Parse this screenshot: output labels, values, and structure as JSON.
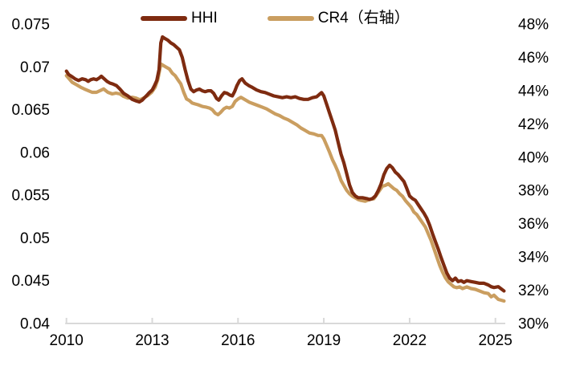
{
  "chart_data": {
    "type": "line",
    "title": "",
    "legend_position": "top",
    "grid": false,
    "axis_color": "#D9D9D9",
    "text_color": "#000000",
    "x_ticks": [
      2010,
      2013,
      2016,
      2019,
      2022,
      2025
    ],
    "left_axis": {
      "label": "HHI",
      "min": 0.04,
      "max": 0.075,
      "tick_labels": [
        "0.075",
        "0.07",
        "0.065",
        "0.06",
        "0.055",
        "0.05",
        "0.045",
        "0.04"
      ],
      "tick_values": [
        0.075,
        0.07,
        0.065,
        0.06,
        0.055,
        0.05,
        0.045,
        0.04
      ]
    },
    "right_axis": {
      "label": "CR4",
      "min": 30,
      "max": 48,
      "tick_labels": [
        "48%",
        "46%",
        "44%",
        "42%",
        "40%",
        "38%",
        "36%",
        "34%",
        "32%",
        "30%"
      ],
      "tick_values": [
        48,
        46,
        44,
        42,
        40,
        38,
        36,
        34,
        32,
        30
      ]
    },
    "series": [
      {
        "name": "HHI",
        "axis": "left",
        "color": "#7E2B10",
        "points": [
          [
            2010.0,
            0.0695
          ],
          [
            2010.08,
            0.0691
          ],
          [
            2010.17,
            0.0689
          ],
          [
            2010.3,
            0.0686
          ],
          [
            2010.42,
            0.0684
          ],
          [
            2010.55,
            0.0686
          ],
          [
            2010.67,
            0.0685
          ],
          [
            2010.76,
            0.0683
          ],
          [
            2010.85,
            0.0685
          ],
          [
            2010.95,
            0.0686
          ],
          [
            2011.05,
            0.0685
          ],
          [
            2011.15,
            0.0687
          ],
          [
            2011.22,
            0.0689
          ],
          [
            2011.32,
            0.0686
          ],
          [
            2011.42,
            0.0683
          ],
          [
            2011.52,
            0.0681
          ],
          [
            2011.62,
            0.068
          ],
          [
            2011.75,
            0.0678
          ],
          [
            2011.87,
            0.0674
          ],
          [
            2012.0,
            0.0669
          ],
          [
            2012.15,
            0.0666
          ],
          [
            2012.3,
            0.0662
          ],
          [
            2012.45,
            0.066
          ],
          [
            2012.55,
            0.0659
          ],
          [
            2012.65,
            0.0661
          ],
          [
            2012.73,
            0.0664
          ],
          [
            2012.82,
            0.0667
          ],
          [
            2012.9,
            0.067
          ],
          [
            2013.0,
            0.0673
          ],
          [
            2013.08,
            0.0678
          ],
          [
            2013.16,
            0.0684
          ],
          [
            2013.24,
            0.0697
          ],
          [
            2013.3,
            0.0728
          ],
          [
            2013.36,
            0.0735
          ],
          [
            2013.45,
            0.0733
          ],
          [
            2013.55,
            0.0731
          ],
          [
            2013.65,
            0.0728
          ],
          [
            2013.75,
            0.0726
          ],
          [
            2013.85,
            0.0723
          ],
          [
            2013.95,
            0.072
          ],
          [
            2014.05,
            0.0711
          ],
          [
            2014.15,
            0.0697
          ],
          [
            2014.25,
            0.0684
          ],
          [
            2014.35,
            0.0674
          ],
          [
            2014.45,
            0.0671
          ],
          [
            2014.55,
            0.0673
          ],
          [
            2014.65,
            0.0674
          ],
          [
            2014.75,
            0.0672
          ],
          [
            2014.85,
            0.0671
          ],
          [
            2014.95,
            0.0672
          ],
          [
            2015.05,
            0.0672
          ],
          [
            2015.15,
            0.0669
          ],
          [
            2015.25,
            0.0663
          ],
          [
            2015.33,
            0.0661
          ],
          [
            2015.42,
            0.0666
          ],
          [
            2015.52,
            0.067
          ],
          [
            2015.62,
            0.0669
          ],
          [
            2015.72,
            0.0667
          ],
          [
            2015.8,
            0.0666
          ],
          [
            2015.88,
            0.0671
          ],
          [
            2015.96,
            0.0678
          ],
          [
            2016.06,
            0.0684
          ],
          [
            2016.14,
            0.0686
          ],
          [
            2016.25,
            0.0681
          ],
          [
            2016.38,
            0.0678
          ],
          [
            2016.5,
            0.0676
          ],
          [
            2016.65,
            0.0673
          ],
          [
            2016.8,
            0.0671
          ],
          [
            2016.95,
            0.067
          ],
          [
            2017.1,
            0.0668
          ],
          [
            2017.25,
            0.0666
          ],
          [
            2017.4,
            0.0665
          ],
          [
            2017.55,
            0.0664
          ],
          [
            2017.7,
            0.0665
          ],
          [
            2017.85,
            0.0664
          ],
          [
            2018.0,
            0.0665
          ],
          [
            2018.15,
            0.0663
          ],
          [
            2018.3,
            0.0662
          ],
          [
            2018.45,
            0.0662
          ],
          [
            2018.6,
            0.0664
          ],
          [
            2018.75,
            0.0665
          ],
          [
            2018.85,
            0.0668
          ],
          [
            2018.92,
            0.067
          ],
          [
            2019.0,
            0.0666
          ],
          [
            2019.1,
            0.0656
          ],
          [
            2019.2,
            0.0646
          ],
          [
            2019.3,
            0.0636
          ],
          [
            2019.4,
            0.0626
          ],
          [
            2019.5,
            0.0612
          ],
          [
            2019.6,
            0.0598
          ],
          [
            2019.7,
            0.0588
          ],
          [
            2019.8,
            0.0575
          ],
          [
            2019.9,
            0.0562
          ],
          [
            2020.0,
            0.0553
          ],
          [
            2020.1,
            0.0549
          ],
          [
            2020.2,
            0.0547
          ],
          [
            2020.35,
            0.0547
          ],
          [
            2020.5,
            0.0546
          ],
          [
            2020.6,
            0.0545
          ],
          [
            2020.7,
            0.0546
          ],
          [
            2020.8,
            0.0549
          ],
          [
            2020.9,
            0.0555
          ],
          [
            2021.0,
            0.0563
          ],
          [
            2021.1,
            0.0574
          ],
          [
            2021.2,
            0.0581
          ],
          [
            2021.3,
            0.0585
          ],
          [
            2021.4,
            0.0582
          ],
          [
            2021.5,
            0.0577
          ],
          [
            2021.6,
            0.0574
          ],
          [
            2021.7,
            0.057
          ],
          [
            2021.8,
            0.0566
          ],
          [
            2021.9,
            0.0558
          ],
          [
            2022.0,
            0.0549
          ],
          [
            2022.1,
            0.0546
          ],
          [
            2022.2,
            0.0544
          ],
          [
            2022.3,
            0.0539
          ],
          [
            2022.4,
            0.0534
          ],
          [
            2022.5,
            0.0529
          ],
          [
            2022.6,
            0.0523
          ],
          [
            2022.7,
            0.0515
          ],
          [
            2022.8,
            0.0505
          ],
          [
            2022.9,
            0.0496
          ],
          [
            2023.0,
            0.0487
          ],
          [
            2023.1,
            0.0477
          ],
          [
            2023.2,
            0.0468
          ],
          [
            2023.3,
            0.0459
          ],
          [
            2023.4,
            0.0453
          ],
          [
            2023.5,
            0.045
          ],
          [
            2023.6,
            0.0453
          ],
          [
            2023.7,
            0.0449
          ],
          [
            2023.8,
            0.045
          ],
          [
            2023.9,
            0.0448
          ],
          [
            2024.0,
            0.045
          ],
          [
            2024.15,
            0.0449
          ],
          [
            2024.3,
            0.0448
          ],
          [
            2024.45,
            0.0447
          ],
          [
            2024.6,
            0.0447
          ],
          [
            2024.75,
            0.0445
          ],
          [
            2024.85,
            0.0443
          ],
          [
            2024.95,
            0.0442
          ],
          [
            2025.1,
            0.0443
          ],
          [
            2025.3,
            0.0438
          ]
        ]
      },
      {
        "name": "CR4（右轴）",
        "axis": "right",
        "color": "#CA9E60",
        "points": [
          [
            2010.0,
            44.9
          ],
          [
            2010.1,
            44.7
          ],
          [
            2010.2,
            44.5
          ],
          [
            2010.35,
            44.35
          ],
          [
            2010.5,
            44.2
          ],
          [
            2010.62,
            44.1
          ],
          [
            2010.76,
            44.0
          ],
          [
            2010.9,
            43.9
          ],
          [
            2011.05,
            43.9
          ],
          [
            2011.18,
            44.0
          ],
          [
            2011.3,
            44.1
          ],
          [
            2011.45,
            43.9
          ],
          [
            2011.6,
            43.8
          ],
          [
            2011.73,
            43.85
          ],
          [
            2011.87,
            43.8
          ],
          [
            2012.0,
            43.65
          ],
          [
            2012.15,
            43.55
          ],
          [
            2012.3,
            43.6
          ],
          [
            2012.43,
            43.55
          ],
          [
            2012.57,
            43.45
          ],
          [
            2012.7,
            43.55
          ],
          [
            2012.84,
            43.7
          ],
          [
            2012.98,
            43.9
          ],
          [
            2013.1,
            44.2
          ],
          [
            2013.2,
            44.7
          ],
          [
            2013.3,
            45.6
          ],
          [
            2013.4,
            45.5
          ],
          [
            2013.5,
            45.4
          ],
          [
            2013.6,
            45.3
          ],
          [
            2013.7,
            45.05
          ],
          [
            2013.8,
            44.9
          ],
          [
            2013.9,
            44.65
          ],
          [
            2014.0,
            44.4
          ],
          [
            2014.1,
            43.9
          ],
          [
            2014.2,
            43.5
          ],
          [
            2014.3,
            43.4
          ],
          [
            2014.4,
            43.25
          ],
          [
            2014.5,
            43.2
          ],
          [
            2014.6,
            43.15
          ],
          [
            2014.75,
            43.05
          ],
          [
            2014.9,
            43.0
          ],
          [
            2015.0,
            42.95
          ],
          [
            2015.1,
            42.85
          ],
          [
            2015.2,
            42.65
          ],
          [
            2015.3,
            42.55
          ],
          [
            2015.4,
            42.7
          ],
          [
            2015.5,
            42.9
          ],
          [
            2015.6,
            43.0
          ],
          [
            2015.7,
            42.95
          ],
          [
            2015.8,
            43.05
          ],
          [
            2015.9,
            43.35
          ],
          [
            2016.0,
            43.5
          ],
          [
            2016.1,
            43.6
          ],
          [
            2016.25,
            43.45
          ],
          [
            2016.4,
            43.3
          ],
          [
            2016.55,
            43.2
          ],
          [
            2016.7,
            43.1
          ],
          [
            2016.85,
            43.0
          ],
          [
            2017.0,
            42.9
          ],
          [
            2017.15,
            42.75
          ],
          [
            2017.3,
            42.6
          ],
          [
            2017.45,
            42.5
          ],
          [
            2017.6,
            42.35
          ],
          [
            2017.75,
            42.25
          ],
          [
            2017.9,
            42.1
          ],
          [
            2018.05,
            41.95
          ],
          [
            2018.2,
            41.75
          ],
          [
            2018.35,
            41.6
          ],
          [
            2018.5,
            41.45
          ],
          [
            2018.65,
            41.4
          ],
          [
            2018.8,
            41.3
          ],
          [
            2018.92,
            41.3
          ],
          [
            2019.0,
            41.1
          ],
          [
            2019.1,
            40.7
          ],
          [
            2019.2,
            40.3
          ],
          [
            2019.3,
            39.85
          ],
          [
            2019.4,
            39.5
          ],
          [
            2019.5,
            39.1
          ],
          [
            2019.6,
            38.6
          ],
          [
            2019.7,
            38.3
          ],
          [
            2019.8,
            38.0
          ],
          [
            2019.9,
            37.8
          ],
          [
            2020.0,
            37.65
          ],
          [
            2020.1,
            37.55
          ],
          [
            2020.2,
            37.45
          ],
          [
            2020.3,
            37.4
          ],
          [
            2020.45,
            37.35
          ],
          [
            2020.6,
            37.45
          ],
          [
            2020.75,
            37.5
          ],
          [
            2020.85,
            37.75
          ],
          [
            2020.95,
            38.0
          ],
          [
            2021.05,
            38.25
          ],
          [
            2021.15,
            38.3
          ],
          [
            2021.25,
            38.4
          ],
          [
            2021.35,
            38.25
          ],
          [
            2021.45,
            38.1
          ],
          [
            2021.55,
            38.0
          ],
          [
            2021.65,
            37.8
          ],
          [
            2021.75,
            37.65
          ],
          [
            2021.85,
            37.4
          ],
          [
            2021.95,
            37.2
          ],
          [
            2022.05,
            37.0
          ],
          [
            2022.15,
            36.7
          ],
          [
            2022.25,
            36.55
          ],
          [
            2022.35,
            36.3
          ],
          [
            2022.45,
            36.05
          ],
          [
            2022.55,
            35.8
          ],
          [
            2022.65,
            35.4
          ],
          [
            2022.75,
            35.0
          ],
          [
            2022.85,
            34.5
          ],
          [
            2022.95,
            34.0
          ],
          [
            2023.05,
            33.5
          ],
          [
            2023.15,
            33.1
          ],
          [
            2023.25,
            32.75
          ],
          [
            2023.35,
            32.5
          ],
          [
            2023.45,
            32.35
          ],
          [
            2023.55,
            32.2
          ],
          [
            2023.65,
            32.15
          ],
          [
            2023.75,
            32.2
          ],
          [
            2023.85,
            32.1
          ],
          [
            2024.0,
            32.2
          ],
          [
            2024.15,
            32.1
          ],
          [
            2024.3,
            32.05
          ],
          [
            2024.45,
            31.95
          ],
          [
            2024.6,
            31.85
          ],
          [
            2024.75,
            31.8
          ],
          [
            2024.85,
            31.6
          ],
          [
            2024.95,
            31.7
          ],
          [
            2025.1,
            31.45
          ],
          [
            2025.3,
            31.35
          ]
        ]
      }
    ]
  },
  "legend": {
    "hhi_label": "HHI",
    "cr4_label": "CR4（右轴）"
  }
}
